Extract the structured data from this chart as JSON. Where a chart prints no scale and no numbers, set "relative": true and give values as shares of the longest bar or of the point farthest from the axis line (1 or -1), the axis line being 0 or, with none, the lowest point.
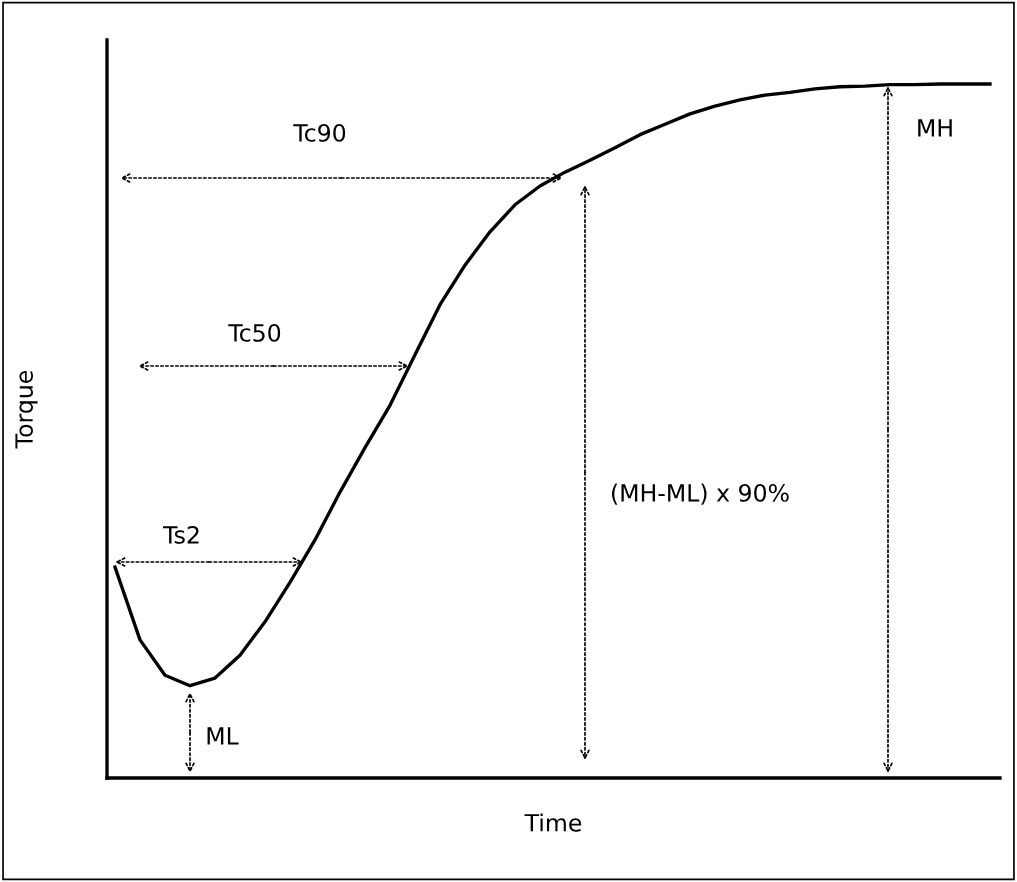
{
  "chart_data": {
    "type": "line",
    "relative": true,
    "xlabel": "Time",
    "ylabel": "Torque",
    "categories": [
      null,
      null,
      null,
      null,
      null,
      null,
      null,
      null,
      null,
      null,
      null,
      null,
      null,
      null,
      null,
      null,
      null,
      null,
      null,
      null,
      null,
      null,
      null,
      null,
      null,
      null,
      null,
      null,
      null,
      null,
      null,
      null,
      null,
      null,
      null,
      null
    ],
    "series": [
      {
        "color": "#000000",
        "values": [
          0.304,
          0.199,
          0.148,
          0.133,
          0.144,
          0.177,
          0.225,
          0.282,
          0.343,
          0.412,
          0.476,
          0.537,
          0.61,
          0.682,
          0.739,
          0.787,
          0.826,
          0.853,
          0.873,
          0.89,
          0.908,
          0.927,
          0.942,
          0.957,
          0.968,
          0.977,
          0.984,
          0.988,
          0.993,
          0.996,
          0.997,
          0.999,
          0.999,
          1,
          1,
          1
        ]
      }
    ],
    "annotations": [
      "Tc90",
      "Tc50",
      "Ts2",
      "MH",
      "(MH-ML) x 90%",
      "ML"
    ],
    "marker": "none",
    "line_style": "solid",
    "grid": false
  }
}
